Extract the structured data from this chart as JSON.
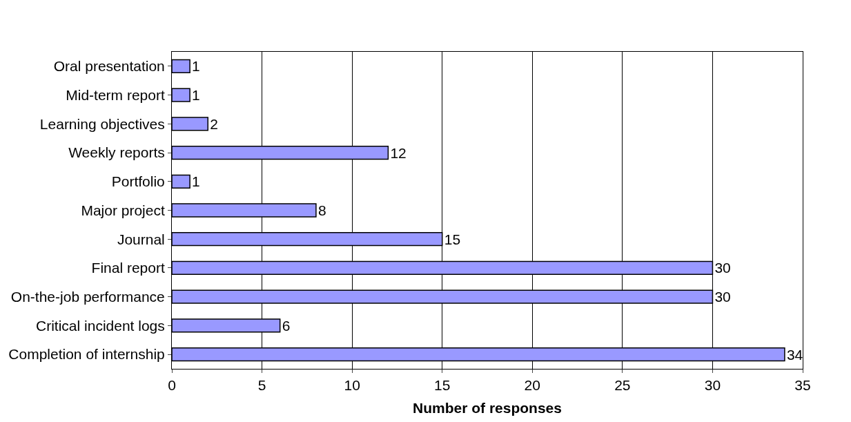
{
  "chart_data": {
    "type": "bar",
    "orientation": "horizontal",
    "xlabel": "Number of responses",
    "categories": [
      "Oral presentation",
      "Mid-term report",
      "Learning objectives",
      "Weekly reports",
      "Portfolio",
      "Major project",
      "Journal",
      "Final report",
      "On-the-job performance",
      "Critical incident logs",
      "Completion of internship"
    ],
    "values": [
      1,
      1,
      2,
      12,
      1,
      8,
      15,
      30,
      30,
      6,
      34
    ],
    "color": "#9999ff",
    "xlim": [
      0,
      35
    ],
    "xticks": [
      0,
      5,
      10,
      15,
      20,
      25,
      30,
      35
    ],
    "grid": "x",
    "data_labels": true
  }
}
